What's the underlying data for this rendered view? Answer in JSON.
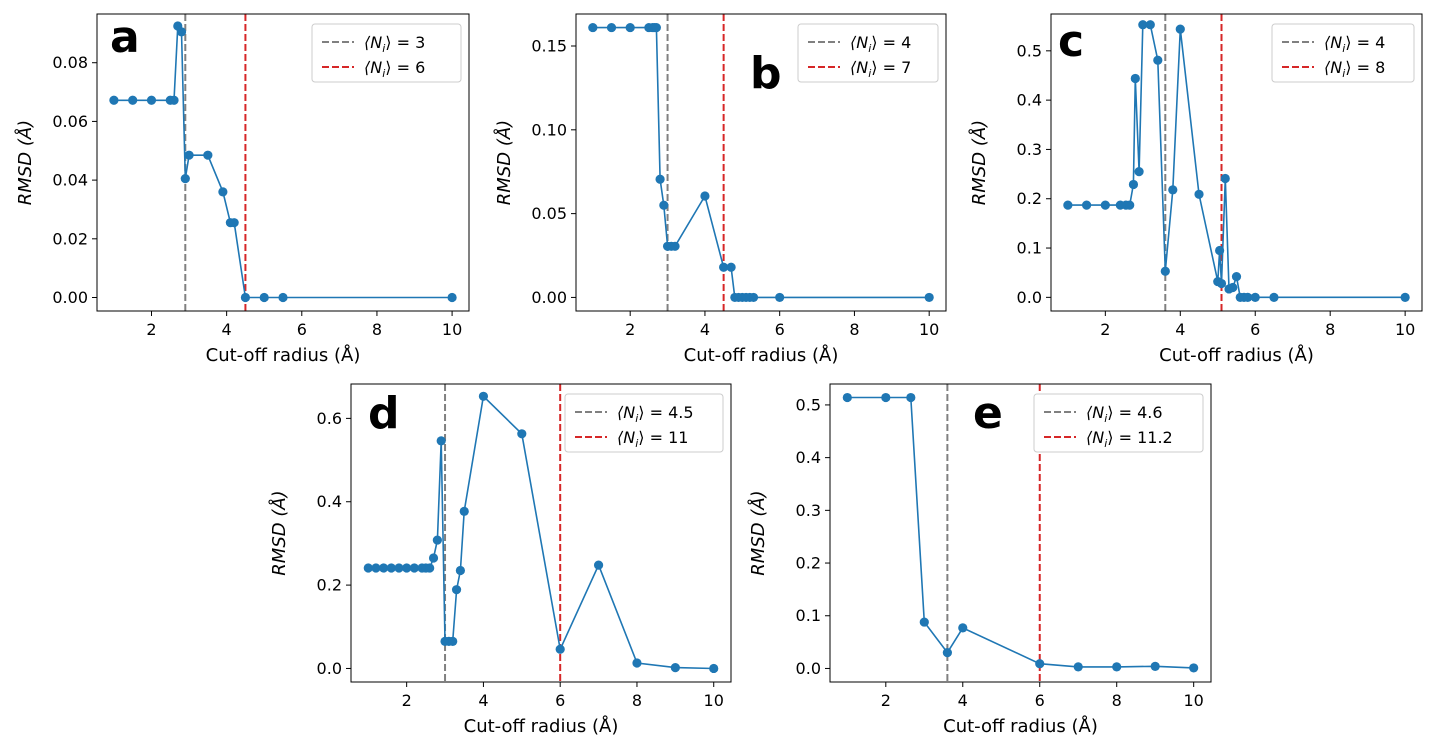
{
  "figure": {
    "colors": {
      "series": "#1f77b4",
      "ref_line_1": "#808080",
      "ref_line_2": "#d62728",
      "axes": "#000000"
    }
  },
  "chart_data": [
    {
      "type": "line",
      "panel": "a",
      "xlabel": "Cut-off radius (Å)",
      "ylabel": "RMSD (Å)",
      "xlim": [
        0.55,
        10.45
      ],
      "ylim": [
        -0.0046,
        0.0966
      ],
      "xticks": [
        2,
        4,
        6,
        8,
        10
      ],
      "yticks": [
        0.0,
        0.02,
        0.04,
        0.06,
        0.08
      ],
      "ytick_labels": [
        "0.00",
        "0.02",
        "0.04",
        "0.06",
        "0.08"
      ],
      "legend_position": "top-right",
      "ref_lines": [
        {
          "x": 2.9,
          "label_prefix": "⟨N",
          "label_sub": "i",
          "label_suffix": "⟩ = 3",
          "color": "#808080"
        },
        {
          "x": 4.5,
          "label_prefix": "⟨N",
          "label_sub": "i",
          "label_suffix": "⟩ = 6",
          "color": "#d62728"
        }
      ],
      "series": [
        {
          "name": "RMSD",
          "x": [
            1.0,
            1.5,
            2.0,
            2.5,
            2.6,
            2.7,
            2.8,
            2.9,
            3.0,
            3.5,
            3.9,
            4.1,
            4.2,
            4.5,
            5.0,
            5.5,
            10.0
          ],
          "y": [
            0.0672,
            0.0672,
            0.0672,
            0.0672,
            0.0672,
            0.0925,
            0.0905,
            0.0405,
            0.0485,
            0.0485,
            0.036,
            0.0255,
            0.0255,
            0.0,
            0.0,
            0.0,
            0.0
          ]
        }
      ]
    },
    {
      "type": "line",
      "panel": "b",
      "xlabel": "Cut-off radius (Å)",
      "ylabel": "RMSD (Å)",
      "xlim": [
        0.55,
        10.45
      ],
      "ylim": [
        -0.0081,
        0.1691
      ],
      "xticks": [
        2,
        4,
        6,
        8,
        10
      ],
      "yticks": [
        0.0,
        0.05,
        0.1,
        0.15
      ],
      "ytick_labels": [
        "0.00",
        "0.05",
        "0.10",
        "0.15"
      ],
      "legend_position": "top-right",
      "ref_lines": [
        {
          "x": 3.0,
          "label_prefix": "⟨N",
          "label_sub": "i",
          "label_suffix": "⟩ = 4",
          "color": "#808080"
        },
        {
          "x": 4.5,
          "label_prefix": "⟨N",
          "label_sub": "i",
          "label_suffix": "⟩ = 7",
          "color": "#d62728"
        }
      ],
      "series": [
        {
          "name": "RMSD",
          "x": [
            1.0,
            1.5,
            2.0,
            2.5,
            2.6,
            2.65,
            2.7,
            2.8,
            2.9,
            3.0,
            3.1,
            3.2,
            4.0,
            4.5,
            4.7,
            4.8,
            4.9,
            5.0,
            5.1,
            5.2,
            5.3,
            6.0,
            10.0
          ],
          "y": [
            0.161,
            0.161,
            0.161,
            0.161,
            0.161,
            0.161,
            0.161,
            0.0705,
            0.055,
            0.0305,
            0.0305,
            0.0305,
            0.0605,
            0.018,
            0.018,
            0.0,
            0.0,
            0.0,
            0.0,
            0.0,
            0.0,
            0.0,
            0.0
          ]
        }
      ]
    },
    {
      "type": "line",
      "panel": "c",
      "xlabel": "Cut-off radius (Å)",
      "ylabel": "RMSD (Å)",
      "xlim": [
        0.55,
        10.45
      ],
      "ylim": [
        -0.0277,
        0.5747
      ],
      "xticks": [
        2,
        4,
        6,
        8,
        10
      ],
      "yticks": [
        0.0,
        0.1,
        0.2,
        0.3,
        0.4,
        0.5
      ],
      "ytick_labels": [
        "0.0",
        "0.1",
        "0.2",
        "0.3",
        "0.4",
        "0.5"
      ],
      "legend_position": "top-right",
      "ref_lines": [
        {
          "x": 3.6,
          "label_prefix": "⟨N",
          "label_sub": "i",
          "label_suffix": "⟩ = 4",
          "color": "#808080"
        },
        {
          "x": 5.1,
          "label_prefix": "⟨N",
          "label_sub": "i",
          "label_suffix": "⟩ = 8",
          "color": "#d62728"
        }
      ],
      "series": [
        {
          "name": "RMSD",
          "x": [
            1.0,
            1.5,
            2.0,
            2.4,
            2.55,
            2.65,
            2.75,
            2.8,
            2.9,
            3.0,
            3.2,
            3.4,
            3.6,
            3.8,
            4.0,
            4.5,
            5.0,
            5.05,
            5.1,
            5.2,
            5.3,
            5.4,
            5.5,
            5.6,
            5.7,
            5.8,
            6.0,
            6.5,
            10.0
          ],
          "y": [
            0.187,
            0.187,
            0.187,
            0.187,
            0.187,
            0.187,
            0.229,
            0.444,
            0.255,
            0.553,
            0.553,
            0.481,
            0.053,
            0.218,
            0.544,
            0.209,
            0.032,
            0.095,
            0.028,
            0.241,
            0.017,
            0.02,
            0.042,
            0.0,
            0.0,
            0.0,
            0.0,
            0.0,
            0.0
          ]
        }
      ]
    },
    {
      "type": "line",
      "panel": "d",
      "xlabel": "Cut-off radius (Å)",
      "ylabel": "RMSD (Å)",
      "xlim": [
        0.55,
        10.45
      ],
      "ylim": [
        -0.0325,
        0.6825
      ],
      "xticks": [
        2,
        4,
        6,
        8,
        10
      ],
      "yticks": [
        0.0,
        0.2,
        0.4,
        0.6
      ],
      "ytick_labels": [
        "0.0",
        "0.2",
        "0.4",
        "0.6"
      ],
      "legend_position": "top-right",
      "ref_lines": [
        {
          "x": 3.0,
          "label_prefix": "⟨N",
          "label_sub": "i",
          "label_suffix": "⟩ = 4.5",
          "color": "#808080"
        },
        {
          "x": 6.0,
          "label_prefix": "⟨N",
          "label_sub": "i",
          "label_suffix": "⟩ = 11",
          "color": "#d62728"
        }
      ],
      "series": [
        {
          "name": "RMSD",
          "x": [
            1.0,
            1.2,
            1.4,
            1.6,
            1.8,
            2.0,
            2.2,
            2.4,
            2.5,
            2.6,
            2.7,
            2.8,
            2.9,
            3.0,
            3.1,
            3.2,
            3.3,
            3.4,
            3.5,
            4.0,
            5.0,
            6.0,
            7.0,
            8.0,
            9.0,
            10.0
          ],
          "y": [
            0.241,
            0.241,
            0.241,
            0.241,
            0.241,
            0.241,
            0.241,
            0.241,
            0.241,
            0.241,
            0.265,
            0.308,
            0.546,
            0.065,
            0.065,
            0.065,
            0.189,
            0.235,
            0.377,
            0.653,
            0.563,
            0.046,
            0.248,
            0.013,
            0.002,
            0.0
          ]
        }
      ]
    },
    {
      "type": "line",
      "panel": "e",
      "xlabel": "Cut-off radius (Å)",
      "ylabel": "RMSD (Å)",
      "xlim": [
        0.55,
        10.45
      ],
      "ylim": [
        -0.0257,
        0.5397
      ],
      "xticks": [
        2,
        4,
        6,
        8,
        10
      ],
      "yticks": [
        0.0,
        0.1,
        0.2,
        0.3,
        0.4,
        0.5
      ],
      "ytick_labels": [
        "0.0",
        "0.1",
        "0.2",
        "0.3",
        "0.4",
        "0.5"
      ],
      "legend_position": "top-right",
      "ref_lines": [
        {
          "x": 3.6,
          "label_prefix": "⟨N",
          "label_sub": "i",
          "label_suffix": "⟩ = 4.6",
          "color": "#808080"
        },
        {
          "x": 6.0,
          "label_prefix": "⟨N",
          "label_sub": "i",
          "label_suffix": "⟩ = 11.2",
          "color": "#d62728"
        }
      ],
      "series": [
        {
          "name": "RMSD",
          "x": [
            1.0,
            2.0,
            2.65,
            3.0,
            3.6,
            4.0,
            6.0,
            7.0,
            8.0,
            9.0,
            10.0
          ],
          "y": [
            0.514,
            0.514,
            0.514,
            0.088,
            0.03,
            0.077,
            0.009,
            0.003,
            0.003,
            0.004,
            0.001
          ]
        }
      ]
    }
  ]
}
